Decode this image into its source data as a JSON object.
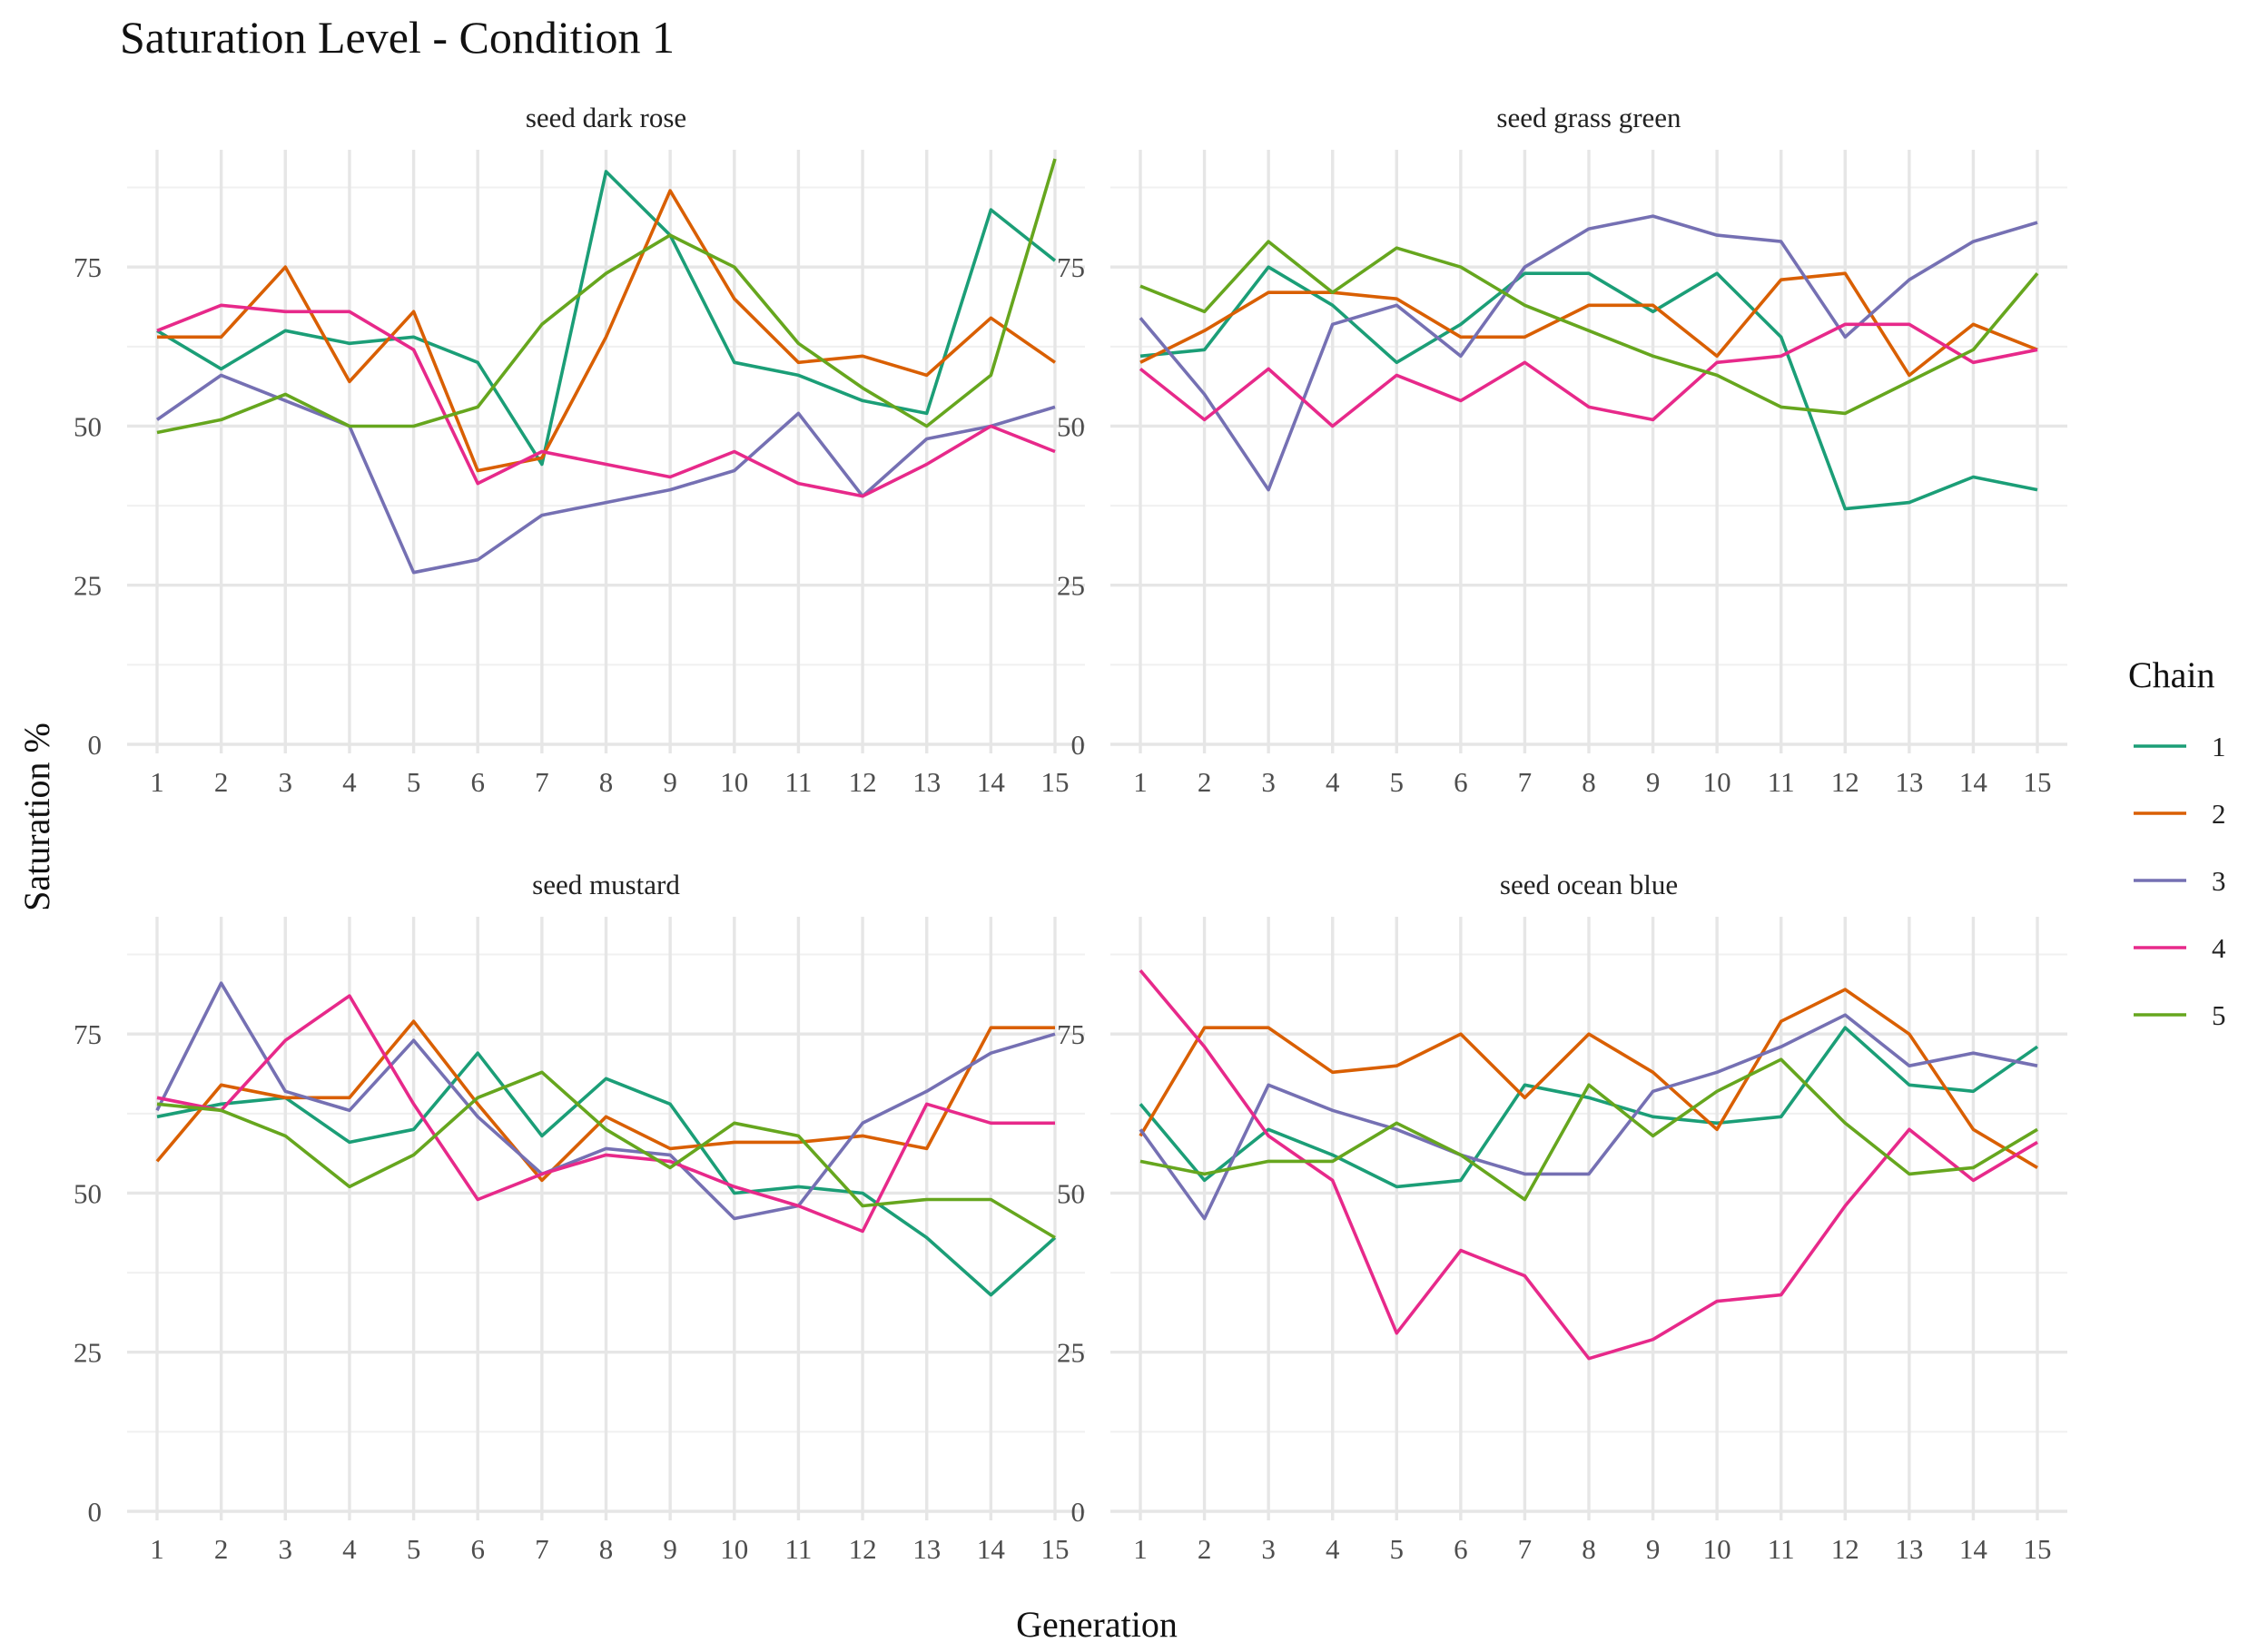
{
  "chart_data": {
    "type": "line",
    "title": "Saturation Level - Condition 1",
    "xlabel": "Generation",
    "ylabel": "Saturation %",
    "x": [
      1,
      2,
      3,
      4,
      5,
      6,
      7,
      8,
      9,
      10,
      11,
      12,
      13,
      14,
      15
    ],
    "xlim": [
      1,
      15
    ],
    "ylim": [
      0,
      92
    ],
    "yticks": [
      0,
      25,
      50,
      75
    ],
    "grid": true,
    "legend": {
      "title": "Chain",
      "placement": "right",
      "entries": [
        {
          "label": "1",
          "color": "#1B9E77"
        },
        {
          "label": "2",
          "color": "#D95F02"
        },
        {
          "label": "3",
          "color": "#7570B3"
        },
        {
          "label": "4",
          "color": "#E7298A"
        },
        {
          "label": "5",
          "color": "#66A61E"
        }
      ]
    },
    "panels": [
      {
        "title": "seed dark rose",
        "series": [
          {
            "name": "1",
            "values": [
              65,
              59,
              65,
              63,
              64,
              60,
              44,
              90,
              80,
              60,
              58,
              54,
              52,
              84,
              76
            ]
          },
          {
            "name": "2",
            "values": [
              64,
              64,
              75,
              57,
              68,
              43,
              45,
              64,
              87,
              70,
              60,
              61,
              58,
              67,
              60
            ]
          },
          {
            "name": "3",
            "values": [
              51,
              58,
              54,
              50,
              27,
              29,
              36,
              38,
              40,
              43,
              52,
              39,
              48,
              50,
              53
            ]
          },
          {
            "name": "4",
            "values": [
              65,
              69,
              68,
              68,
              62,
              41,
              46,
              44,
              42,
              46,
              41,
              39,
              44,
              50,
              46
            ]
          },
          {
            "name": "5",
            "values": [
              49,
              51,
              55,
              50,
              50,
              53,
              66,
              74,
              80,
              75,
              63,
              56,
              50,
              58,
              92
            ]
          }
        ]
      },
      {
        "title": "seed grass green",
        "series": [
          {
            "name": "1",
            "values": [
              61,
              62,
              75,
              69,
              60,
              66,
              74,
              74,
              68,
              74,
              64,
              37,
              38,
              42,
              40
            ]
          },
          {
            "name": "2",
            "values": [
              60,
              65,
              71,
              71,
              70,
              64,
              64,
              69,
              69,
              61,
              73,
              74,
              58,
              66,
              62
            ]
          },
          {
            "name": "3",
            "values": [
              67,
              55,
              40,
              66,
              69,
              61,
              75,
              81,
              83,
              80,
              79,
              64,
              73,
              79,
              82
            ]
          },
          {
            "name": "4",
            "values": [
              59,
              51,
              59,
              50,
              58,
              54,
              60,
              53,
              51,
              60,
              61,
              66,
              66,
              60,
              62
            ]
          },
          {
            "name": "5",
            "values": [
              72,
              68,
              79,
              71,
              78,
              75,
              69,
              65,
              61,
              58,
              53,
              52,
              57,
              62,
              74
            ]
          }
        ]
      },
      {
        "title": "seed mustard",
        "series": [
          {
            "name": "1",
            "values": [
              62,
              64,
              65,
              58,
              60,
              72,
              59,
              68,
              64,
              50,
              51,
              50,
              43,
              34,
              43
            ]
          },
          {
            "name": "2",
            "values": [
              55,
              67,
              65,
              65,
              77,
              64,
              52,
              62,
              57,
              58,
              58,
              59,
              57,
              76,
              76
            ]
          },
          {
            "name": "3",
            "values": [
              63,
              83,
              66,
              63,
              74,
              62,
              53,
              57,
              56,
              46,
              48,
              61,
              66,
              72,
              75
            ]
          },
          {
            "name": "4",
            "values": [
              65,
              63,
              74,
              81,
              64,
              49,
              53,
              56,
              55,
              51,
              48,
              44,
              64,
              61,
              61
            ]
          },
          {
            "name": "5",
            "values": [
              64,
              63,
              59,
              51,
              56,
              65,
              69,
              60,
              54,
              61,
              59,
              48,
              49,
              49,
              43
            ]
          }
        ]
      },
      {
        "title": "seed ocean blue",
        "series": [
          {
            "name": "1",
            "values": [
              64,
              52,
              60,
              56,
              51,
              52,
              67,
              65,
              62,
              61,
              62,
              76,
              67,
              66,
              73
            ]
          },
          {
            "name": "2",
            "values": [
              59,
              76,
              76,
              69,
              70,
              75,
              65,
              75,
              69,
              60,
              77,
              82,
              75,
              60,
              54
            ]
          },
          {
            "name": "3",
            "values": [
              60,
              46,
              67,
              63,
              60,
              56,
              53,
              53,
              66,
              69,
              73,
              78,
              70,
              72,
              70
            ]
          },
          {
            "name": "4",
            "values": [
              85,
              73,
              59,
              52,
              28,
              41,
              37,
              24,
              27,
              33,
              34,
              48,
              60,
              52,
              58
            ]
          },
          {
            "name": "5",
            "values": [
              55,
              53,
              55,
              55,
              61,
              56,
              49,
              67,
              59,
              66,
              71,
              61,
              53,
              54,
              60
            ]
          }
        ]
      }
    ]
  }
}
